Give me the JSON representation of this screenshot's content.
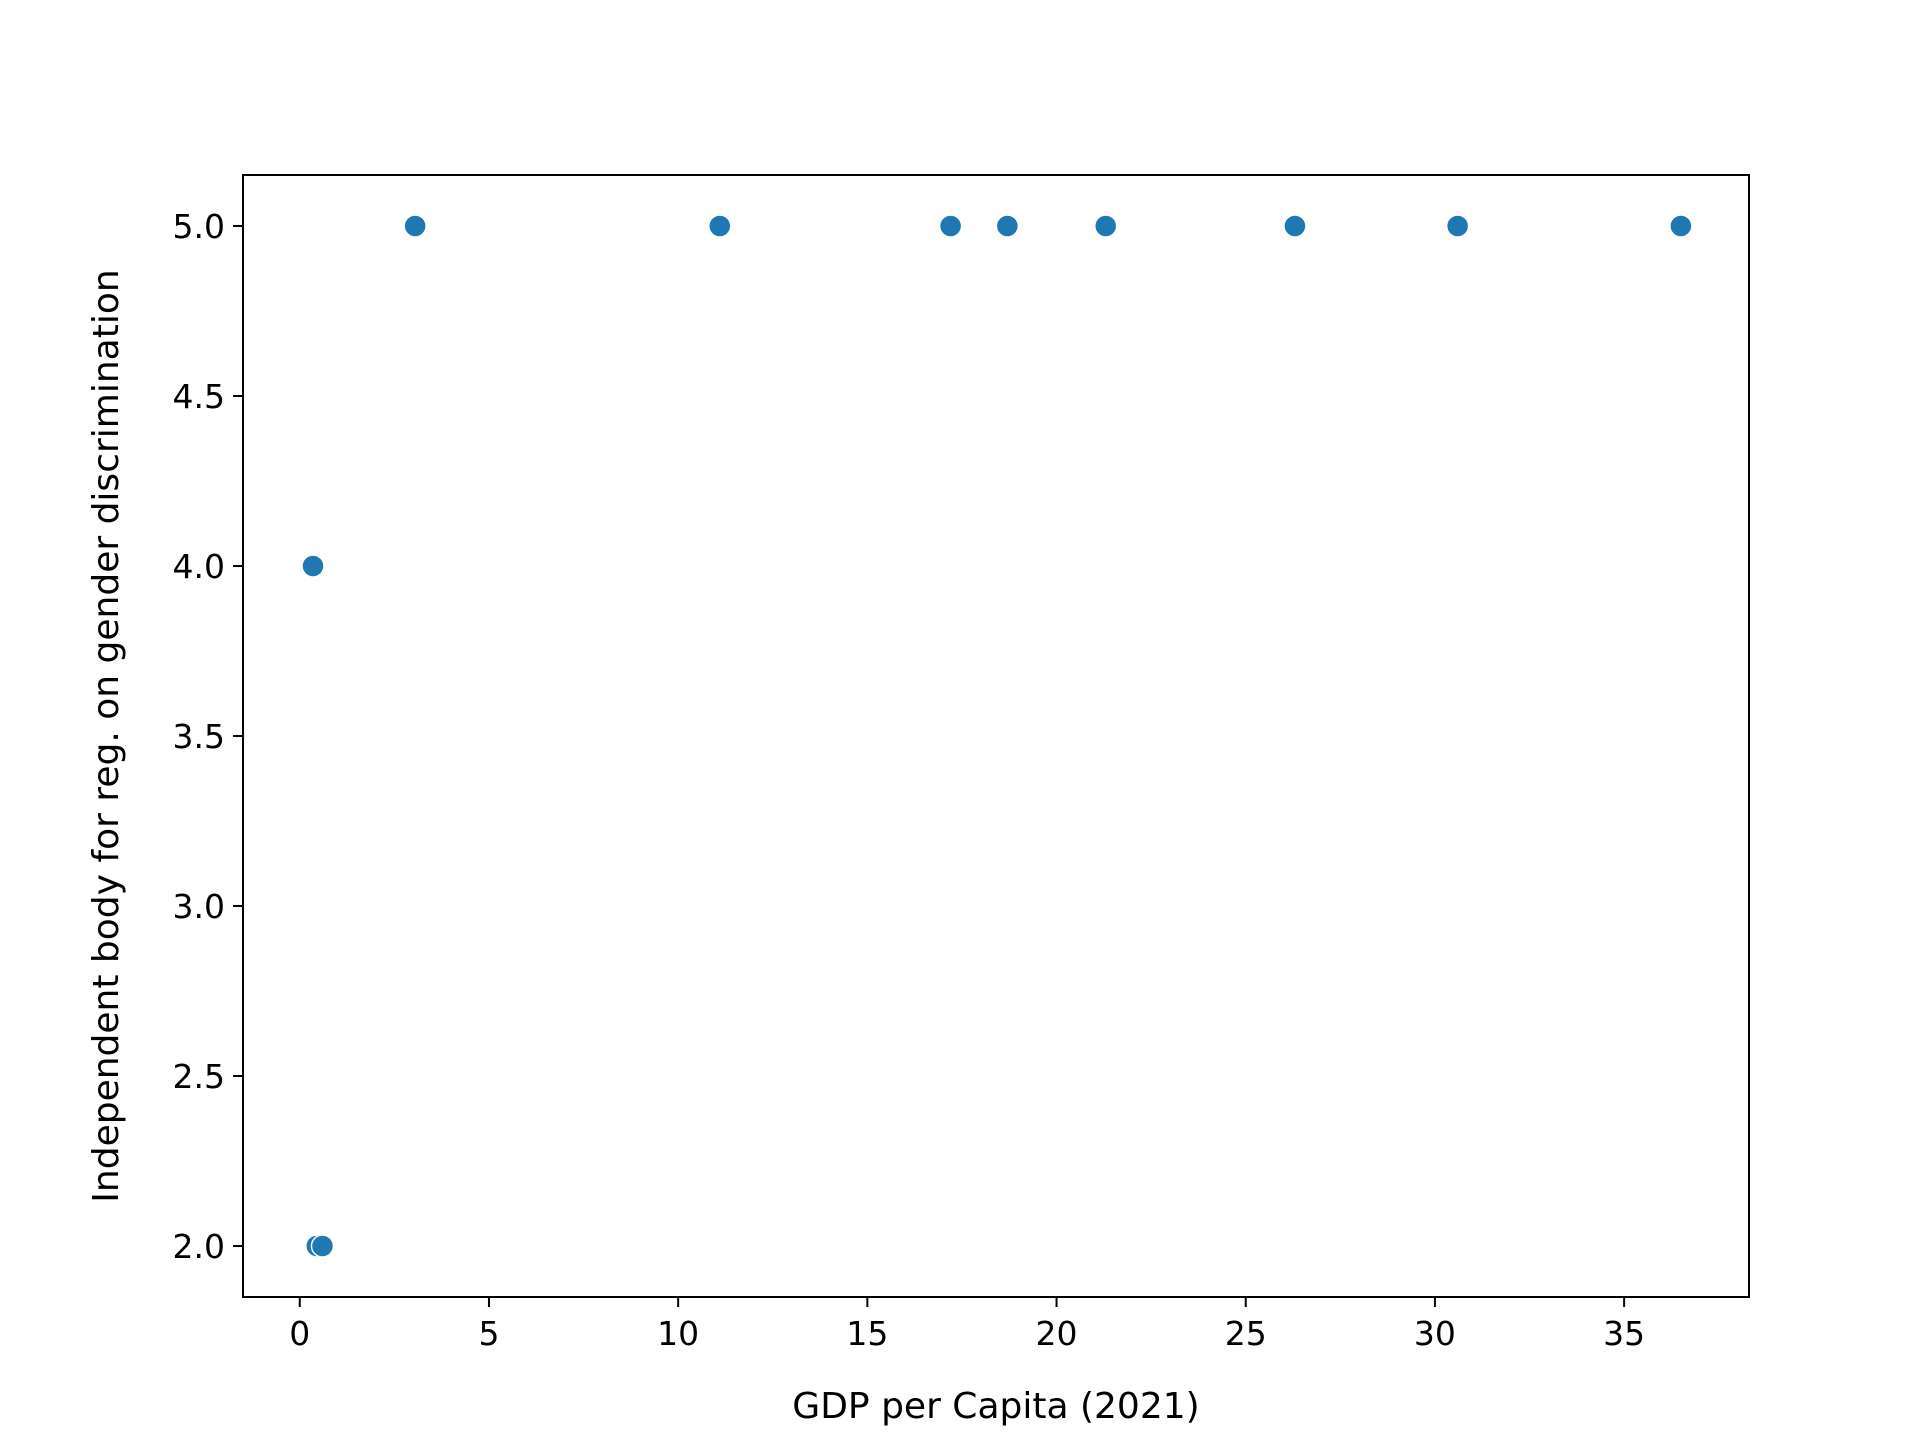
{
  "chart_data": {
    "type": "scatter",
    "title": "",
    "xlabel": "GDP per Capita (2021)",
    "ylabel": "Independent body for reg. on gender discrimination",
    "xlim": [
      -1.5,
      38.3
    ],
    "ylim": [
      1.85,
      5.15
    ],
    "xticks": [
      0,
      5,
      10,
      15,
      20,
      25,
      30,
      35
    ],
    "yticks": [
      2.0,
      2.5,
      3.0,
      3.5,
      4.0,
      4.5,
      5.0
    ],
    "grid": false,
    "point_color": "#1f77b4",
    "points": [
      {
        "x": 0.35,
        "y": 4.0
      },
      {
        "x": 0.45,
        "y": 2.0
      },
      {
        "x": 0.6,
        "y": 2.0
      },
      {
        "x": 3.05,
        "y": 5.0
      },
      {
        "x": 11.1,
        "y": 5.0
      },
      {
        "x": 17.2,
        "y": 5.0
      },
      {
        "x": 18.7,
        "y": 5.0
      },
      {
        "x": 21.3,
        "y": 5.0
      },
      {
        "x": 26.3,
        "y": 5.0
      },
      {
        "x": 30.6,
        "y": 5.0
      },
      {
        "x": 36.5,
        "y": 5.0
      }
    ]
  }
}
